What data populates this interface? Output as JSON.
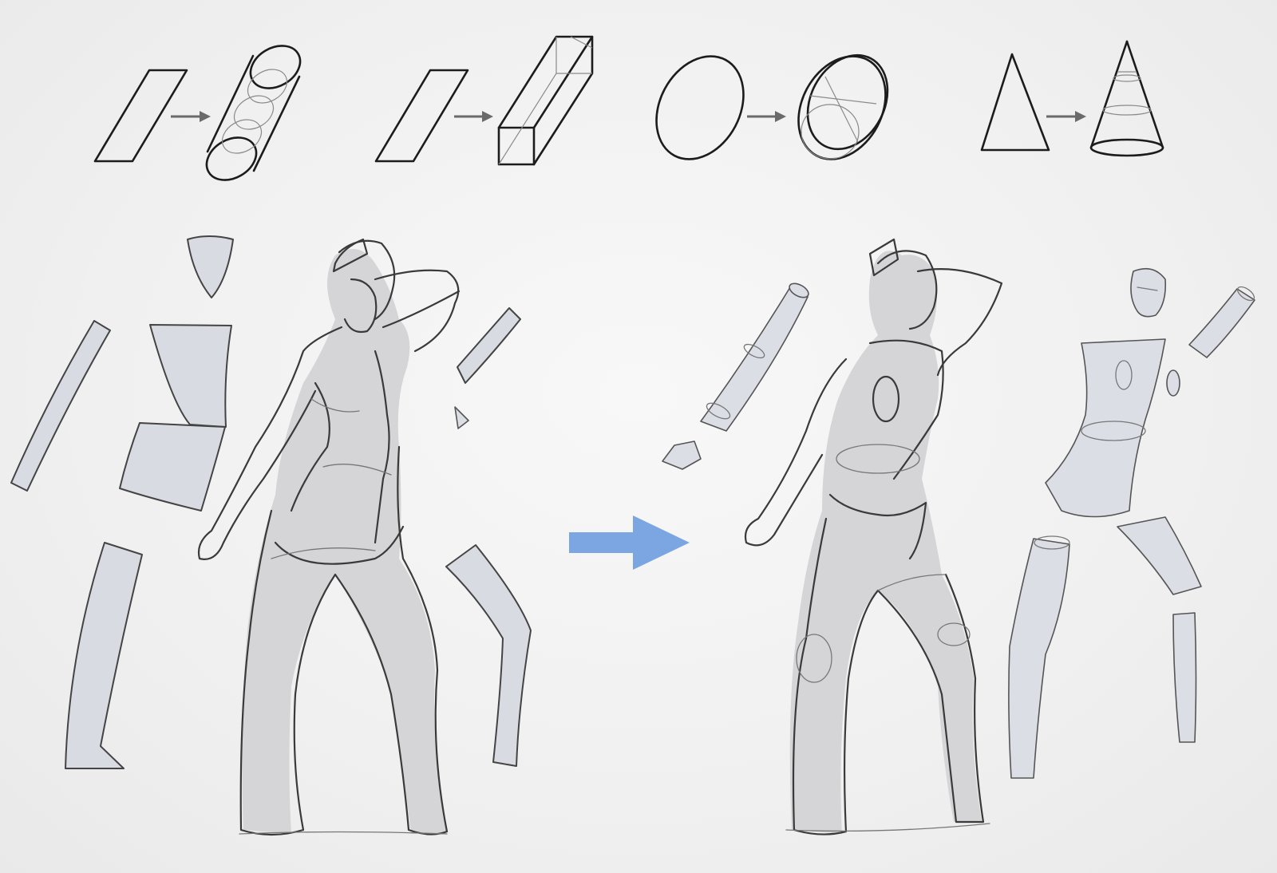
{
  "scene": {
    "background": "#f1f1f1",
    "ink_color": "#1c1c1c",
    "piece_color": "#d9dbe3",
    "arrow_color": "#7ca6e2"
  },
  "icons": {
    "small_arrow": "right-arrow-icon",
    "big_arrow": "right-arrow-icon"
  }
}
